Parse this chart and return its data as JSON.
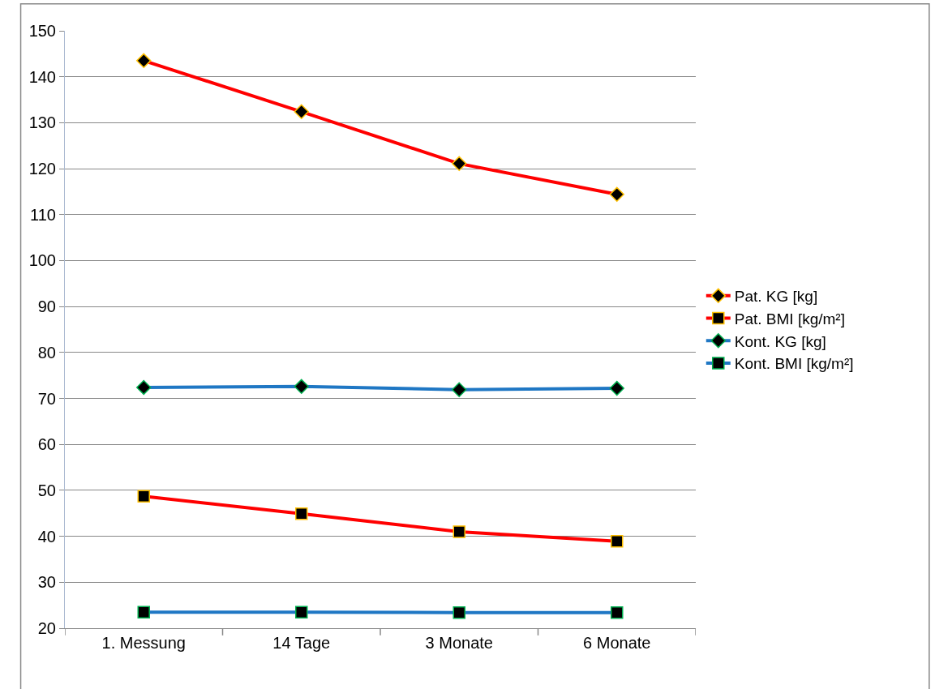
{
  "chart_data": {
    "type": "line",
    "categories": [
      "1. Messung",
      "14 Tage",
      "3 Monate",
      "6 Monate"
    ],
    "series": [
      {
        "name": "Pat. KG [kg]",
        "color": "#ff0000",
        "marker": "diamond",
        "values": [
          143.5,
          132.4,
          121.1,
          114.4
        ]
      },
      {
        "name": "Pat. BMI [kg/m²]",
        "color": "#ff0000",
        "marker": "square",
        "values": [
          48.7,
          44.9,
          41.0,
          38.9
        ]
      },
      {
        "name": "Kont. KG [kg]",
        "color": "#1f77c4",
        "marker": "diamond",
        "values": [
          72.4,
          72.6,
          71.9,
          72.2
        ]
      },
      {
        "name": "Kont. BMI [kg/m²]",
        "color": "#1f77c4",
        "marker": "square",
        "values": [
          23.5,
          23.5,
          23.4,
          23.4
        ]
      }
    ],
    "ylim": [
      20,
      150
    ],
    "yticks": [
      20,
      30,
      40,
      50,
      60,
      70,
      80,
      90,
      100,
      110,
      120,
      130,
      140,
      150
    ],
    "grid": "y",
    "legend": "right",
    "line_style": "solid"
  }
}
